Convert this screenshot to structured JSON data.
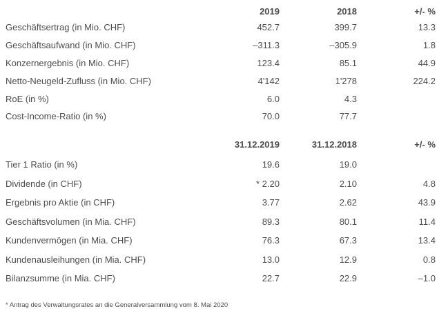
{
  "colors": {
    "background": "#ffffff",
    "text": "#4b4c4e"
  },
  "sections": [
    {
      "col_headers": [
        "2019",
        "2018",
        "+/- %"
      ],
      "rows": [
        {
          "label": "Geschäftsertrag (in Mio. CHF)",
          "y2019": "452.7",
          "y2018": "399.7",
          "change": "13.3"
        },
        {
          "label": "Geschäftsaufwand (in Mio. CHF)",
          "y2019": "–311.3",
          "y2018": "–305.9",
          "change": "1.8"
        },
        {
          "label": "Konzernergebnis (in Mio. CHF)",
          "y2019": "123.4",
          "y2018": "85.1",
          "change": "44.9"
        },
        {
          "label": "Netto-Neugeld-Zufluss (in Mio. CHF)",
          "y2019": "4'142",
          "y2018": "1'278",
          "change": "224.2"
        },
        {
          "label": "RoE (in %)",
          "y2019": "6.0",
          "y2018": "4.3",
          "change": ""
        },
        {
          "label": "Cost-Income-Ratio (in %)",
          "y2019": "70.0",
          "y2018": "77.7",
          "change": ""
        }
      ]
    },
    {
      "col_headers": [
        "31.12.2019",
        "31.12.2018",
        "+/- %"
      ],
      "rows": [
        {
          "label": "Tier 1 Ratio (in %)",
          "y2019": "19.6",
          "y2018": "19.0",
          "change": ""
        },
        {
          "label": "Dividende (in CHF)",
          "y2019": "* 2.20",
          "y2018": "2.10",
          "change": "4.8"
        },
        {
          "label": "Ergebnis pro Aktie (in CHF)",
          "y2019": "3.77",
          "y2018": "2.62",
          "change": "43.9"
        },
        {
          "label": "Geschäftsvolumen (in Mia. CHF)",
          "y2019": "89.3",
          "y2018": "80.1",
          "change": "11.4"
        },
        {
          "label": "Kundenvermögen (in Mia. CHF)",
          "y2019": "76.3",
          "y2018": "67.3",
          "change": "13.4"
        },
        {
          "label": "Kundenausleihungen (in Mia. CHF)",
          "y2019": "13.0",
          "y2018": "12.9",
          "change": "0.8"
        },
        {
          "label": "Bilanzsumme (in Mia. CHF)",
          "y2019": "22.7",
          "y2018": "22.9",
          "change": "–1.0"
        }
      ]
    }
  ],
  "footnote": "* Antrag des Verwaltungsrates an die Generalversammlung vom 8. Mai 2020"
}
